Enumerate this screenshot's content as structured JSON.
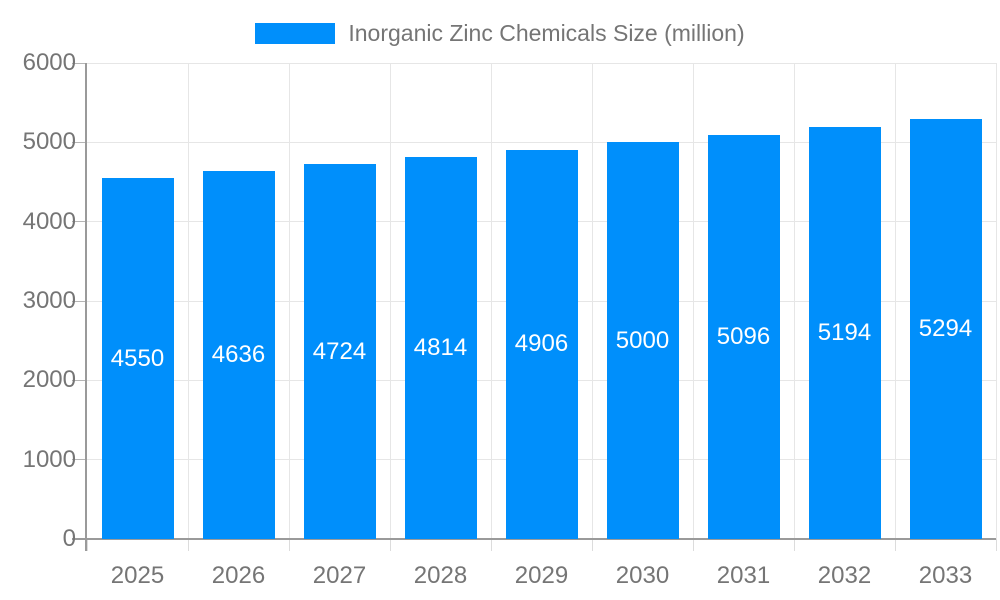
{
  "legend": {
    "label": "Inorganic Zinc Chemicals Size (million)"
  },
  "chart_data": {
    "type": "bar",
    "title": "",
    "xlabel": "",
    "ylabel": "",
    "categories": [
      "2025",
      "2026",
      "2027",
      "2028",
      "2029",
      "2030",
      "2031",
      "2032",
      "2033"
    ],
    "series": [
      {
        "name": "Inorganic Zinc Chemicals Size (million)",
        "values": [
          4550,
          4636,
          4724,
          4814,
          4906,
          5000,
          5096,
          5194,
          5294
        ]
      }
    ],
    "value_labels_shown": true,
    "ylim": [
      0,
      6000
    ],
    "yticks": [
      0,
      1000,
      2000,
      3000,
      4000,
      5000,
      6000
    ],
    "grid": true,
    "legend_position": "top-center"
  },
  "colors": {
    "bar": "#008FFB",
    "grid": "#e6e6e6",
    "axis_line": "#9a9a9a",
    "tick_bottom": "#dcdcdc",
    "tick_left": "#b5b5b5",
    "axis_text": "#757575",
    "value_text": "#ffffff",
    "background": "#ffffff"
  }
}
